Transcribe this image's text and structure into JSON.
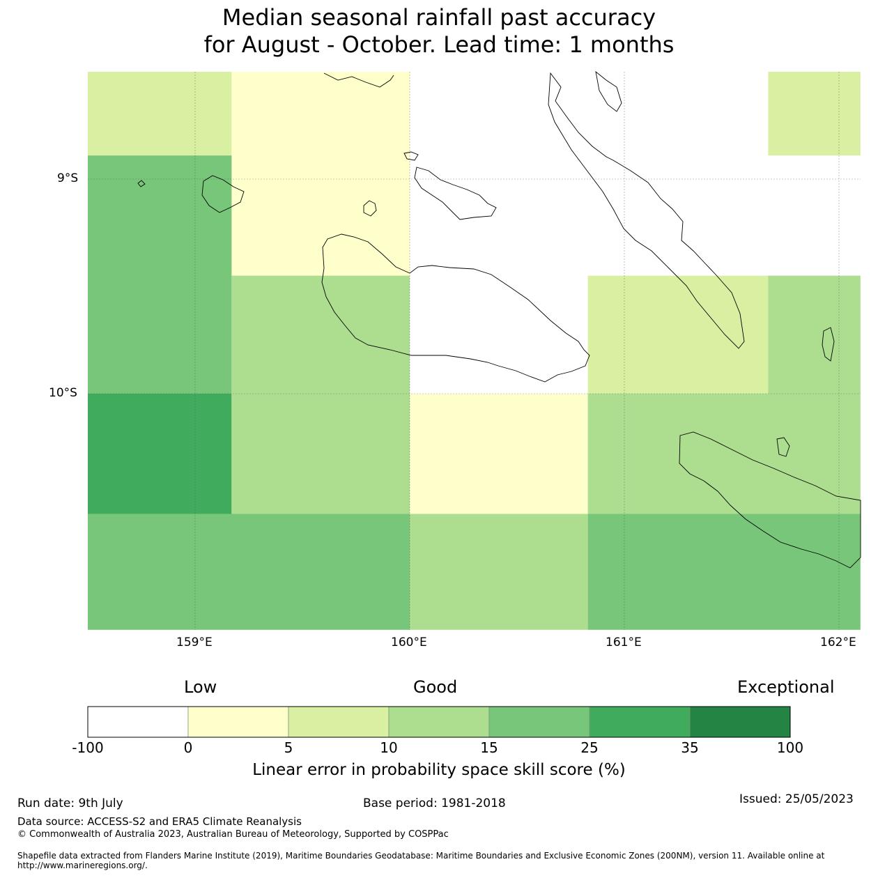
{
  "title": {
    "line1": "Median seasonal rainfall past accuracy",
    "line2": "for August - October. Lead time: 1 months"
  },
  "map": {
    "lat_labels": [
      "9°S",
      "10°S"
    ],
    "lon_labels": [
      "159°E",
      "160°E",
      "161°E",
      "162°E"
    ],
    "extent": {
      "lon": [
        158.5,
        162.1
      ],
      "lat": [
        -11.1,
        -8.5
      ]
    }
  },
  "grid_cells": [
    {
      "lon0": 158.5,
      "lon1": 159.17,
      "lat0": -8.89,
      "lat1": -8.5,
      "category": "5-10"
    },
    {
      "lon0": 159.17,
      "lon1": 160.0,
      "lat0": -8.5,
      "lat1": -9.45,
      "category": "0-5"
    },
    {
      "lon0": 161.67,
      "lon1": 162.1,
      "lat0": -8.89,
      "lat1": -8.5,
      "category": "5-10"
    },
    {
      "lon0": 158.5,
      "lon1": 159.17,
      "lat0": -10.0,
      "lat1": -8.89,
      "category": "15-25"
    },
    {
      "lon0": 159.17,
      "lon1": 160.0,
      "lat0": -10.0,
      "lat1": -9.45,
      "category": "10-15"
    },
    {
      "lon0": 160.83,
      "lon1": 161.67,
      "lat0": -10.0,
      "lat1": -9.45,
      "category": "5-10"
    },
    {
      "lon0": 161.67,
      "lon1": 162.1,
      "lat0": -10.0,
      "lat1": -9.45,
      "category": "10-15"
    },
    {
      "lon0": 158.5,
      "lon1": 159.17,
      "lat0": -10.56,
      "lat1": -10.0,
      "category": "25-35"
    },
    {
      "lon0": 159.17,
      "lon1": 160.0,
      "lat0": -10.56,
      "lat1": -10.0,
      "category": "10-15"
    },
    {
      "lon0": 160.0,
      "lon1": 160.83,
      "lat0": -10.56,
      "lat1": -10.0,
      "category": "0-5"
    },
    {
      "lon0": 160.83,
      "lon1": 162.1,
      "lat0": -10.56,
      "lat1": -10.0,
      "category": "10-15"
    },
    {
      "lon0": 158.5,
      "lon1": 160.0,
      "lat0": -11.1,
      "lat1": -10.56,
      "category": "15-25"
    },
    {
      "lon0": 160.0,
      "lon1": 160.83,
      "lat0": -11.1,
      "lat1": -10.56,
      "category": "10-15"
    },
    {
      "lon0": 160.83,
      "lon1": 162.1,
      "lat0": -11.1,
      "lat1": -10.56,
      "category": "15-25"
    }
  ],
  "colorbar": {
    "categories": [
      "Low",
      "Good",
      "Exceptional"
    ],
    "ticks": [
      "-100",
      "0",
      "5",
      "10",
      "15",
      "25",
      "35",
      "100"
    ],
    "colors": [
      "#ffffff",
      "#ffffcc",
      "#d9f0a3",
      "#addd8e",
      "#78c679",
      "#41ab5d",
      "#238443"
    ],
    "title": "Linear error in probability space skill score (%)"
  },
  "footer": {
    "run_date": "Run date: 9th July",
    "base_period": "Base period: 1981-2018",
    "issued": "Issued: 25/05/2023",
    "data_source": "Data source: ACCESS-S2 and ERA5 Climate Reanalysis",
    "copyright": "© Commonwealth of Australia 2023, Australian Bureau of Meteorology, Supported by COSPPac",
    "shapefile": "Shapefile data extracted from Flanders Marine Institute (2019), Maritime Boundaries Geodatabase: Maritime Boundaries and Exclusive Economic Zones (200NM), version 11. Available online at http://www.marineregions.org/."
  }
}
